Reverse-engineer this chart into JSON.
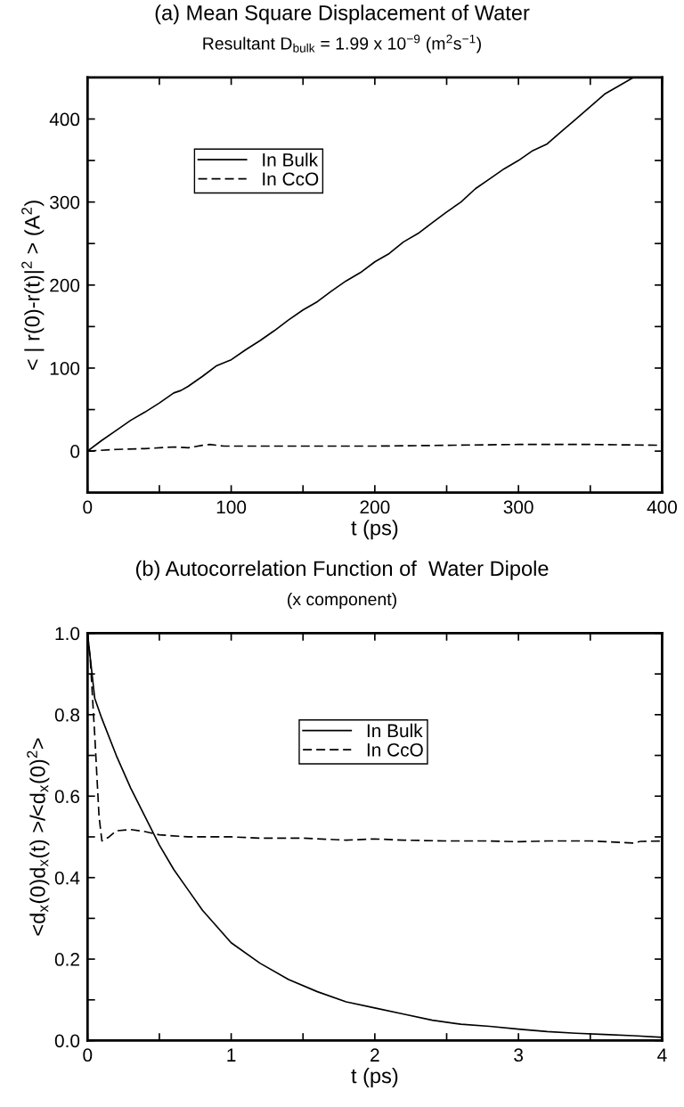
{
  "chart_data": [
    {
      "type": "line",
      "title": "(a) Mean Square Displacement of Water",
      "subtitle": "Resultant D$_{bulk}$ = 1.99 x 10$^{−9}$ (m$^{2}$s$^{−1}$)",
      "xlabel": "t (ps)",
      "ylabel": "< | r(0)-r(t)|$^{2}$ > (A$^{2}$)",
      "xlim": [
        0,
        400
      ],
      "ylim": [
        -50,
        450
      ],
      "xticks": [
        0,
        {
          "value": 50,
          "label": null
        },
        100,
        {
          "value": 150,
          "label": null
        },
        200,
        {
          "value": 250,
          "label": null
        },
        300,
        {
          "value": 350,
          "label": null
        },
        400
      ],
      "yticks": [
        0,
        {
          "value": 50,
          "label": null
        },
        100,
        {
          "value": 150,
          "label": null
        },
        200,
        {
          "value": 250,
          "label": null
        },
        300,
        {
          "value": 350,
          "label": null
        },
        400
      ],
      "grid": false,
      "legend": "top left",
      "series": [
        {
          "name": "In Bulk",
          "color": "#000000",
          "line_style": "solid",
          "x": [
            0,
            10,
            20,
            30,
            40,
            50,
            60,
            65,
            70,
            80,
            90,
            100,
            110,
            120,
            130,
            140,
            150,
            160,
            170,
            180,
            190,
            200,
            210,
            220,
            230,
            240,
            250,
            260,
            270,
            280,
            290,
            300,
            310,
            320,
            330,
            340,
            350,
            360,
            370,
            380
          ],
          "values": [
            0,
            13,
            25,
            37,
            47,
            58,
            70,
            73,
            78,
            90,
            103,
            110,
            122,
            133,
            145,
            158,
            170,
            180,
            193,
            205,
            215,
            228,
            238,
            252,
            262,
            275,
            288,
            300,
            316,
            328,
            340,
            350,
            362,
            370,
            385,
            400,
            415,
            430,
            440,
            450
          ]
        },
        {
          "name": "In CcO",
          "color": "#000000",
          "line_style": "dashed",
          "x": [
            0,
            20,
            40,
            60,
            70,
            80,
            85,
            95,
            120,
            160,
            200,
            250,
            300,
            350,
            400
          ],
          "values": [
            0,
            2,
            3,
            5,
            4,
            7,
            8,
            6,
            6,
            6,
            6,
            7,
            8,
            8,
            7
          ]
        }
      ]
    },
    {
      "type": "line",
      "title": "(b) Autocorrelation Function of  Water Dipole",
      "subtitle": "(x component)",
      "xlabel": "t (ps)",
      "ylabel": "<d$_{x}$(0)d$_{x}$(t) >/<d$_{x}$(0)$^{2}$>",
      "xlim": [
        0,
        4
      ],
      "ylim": [
        0,
        1
      ],
      "xticks": [
        0,
        {
          "value": 0.5,
          "label": null
        },
        1,
        {
          "value": 1.5,
          "label": null
        },
        2,
        {
          "value": 2.5,
          "label": null
        },
        3,
        {
          "value": 3.5,
          "label": null
        },
        4
      ],
      "yticks": [
        {
          "value": 0,
          "label": "0.0"
        },
        {
          "value": 0.1,
          "label": null
        },
        0.2,
        {
          "value": 0.3,
          "label": null
        },
        0.4,
        {
          "value": 0.5,
          "label": null
        },
        0.6,
        {
          "value": 0.7,
          "label": null
        },
        0.8,
        {
          "value": 0.9,
          "label": null
        },
        {
          "value": 1,
          "label": "1.0"
        }
      ],
      "grid": false,
      "legend": "top",
      "series": [
        {
          "name": "In Bulk",
          "color": "#000000",
          "line_style": "solid",
          "x": [
            0,
            0.05,
            0.1,
            0.2,
            0.3,
            0.4,
            0.5,
            0.6,
            0.7,
            0.8,
            0.9,
            1.0,
            1.2,
            1.4,
            1.6,
            1.8,
            2.0,
            2.2,
            2.4,
            2.6,
            2.8,
            3.0,
            3.2,
            3.4,
            3.6,
            3.8,
            4.0
          ],
          "values": [
            1,
            0.84,
            0.79,
            0.7,
            0.62,
            0.55,
            0.48,
            0.42,
            0.37,
            0.32,
            0.28,
            0.24,
            0.19,
            0.15,
            0.12,
            0.095,
            0.08,
            0.065,
            0.05,
            0.04,
            0.035,
            0.028,
            0.022,
            0.018,
            0.015,
            0.012,
            0.008
          ]
        },
        {
          "name": "In CcO",
          "color": "#000000",
          "line_style": "dashed",
          "x": [
            0,
            0.02,
            0.05,
            0.08,
            0.1,
            0.15,
            0.2,
            0.3,
            0.4,
            0.5,
            0.7,
            0.9,
            1.0,
            1.2,
            1.5,
            1.8,
            2.0,
            2.2,
            2.5,
            2.8,
            3.0,
            3.2,
            3.5,
            3.8,
            3.85,
            4.0
          ],
          "values": [
            1,
            0.93,
            0.75,
            0.55,
            0.49,
            0.5,
            0.515,
            0.518,
            0.513,
            0.505,
            0.5,
            0.5,
            0.5,
            0.497,
            0.497,
            0.492,
            0.495,
            0.492,
            0.49,
            0.49,
            0.488,
            0.49,
            0.49,
            0.485,
            0.489,
            0.49
          ]
        }
      ]
    }
  ]
}
